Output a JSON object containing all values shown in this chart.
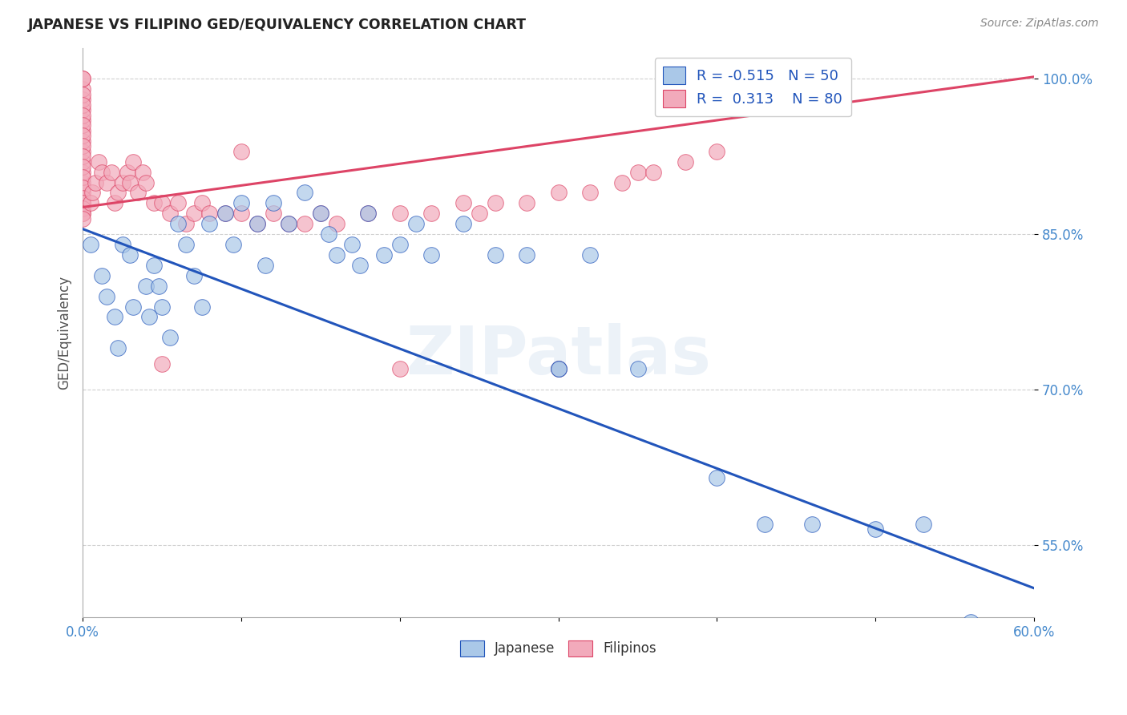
{
  "title": "JAPANESE VS FILIPINO GED/EQUIVALENCY CORRELATION CHART",
  "source": "Source: ZipAtlas.com",
  "ylabel": "GED/Equivalency",
  "watermark": "ZIPatlas",
  "x_min": 0.0,
  "x_max": 0.6,
  "y_min": 0.48,
  "y_max": 1.03,
  "y_ticks": [
    0.55,
    0.7,
    0.85,
    1.0
  ],
  "y_tick_labels": [
    "55.0%",
    "70.0%",
    "85.0%",
    "100.0%"
  ],
  "legend_R_japanese": "-0.515",
  "legend_N_japanese": "50",
  "legend_R_filipino": "0.313",
  "legend_N_filipino": "80",
  "japanese_color": "#aac8e8",
  "filipino_color": "#f2aabb",
  "japanese_line_color": "#2255bb",
  "filipino_line_color": "#dd4466",
  "japanese_scatter_x": [
    0.005,
    0.012,
    0.015,
    0.02,
    0.022,
    0.025,
    0.03,
    0.032,
    0.04,
    0.042,
    0.045,
    0.048,
    0.05,
    0.055,
    0.06,
    0.065,
    0.07,
    0.075,
    0.08,
    0.09,
    0.095,
    0.1,
    0.11,
    0.115,
    0.12,
    0.13,
    0.14,
    0.15,
    0.155,
    0.16,
    0.17,
    0.175,
    0.18,
    0.19,
    0.2,
    0.21,
    0.22,
    0.24,
    0.26,
    0.28,
    0.3,
    0.32,
    0.35,
    0.4,
    0.43,
    0.46,
    0.5,
    0.53,
    0.56,
    0.3
  ],
  "japanese_scatter_y": [
    0.84,
    0.81,
    0.79,
    0.77,
    0.74,
    0.84,
    0.83,
    0.78,
    0.8,
    0.77,
    0.82,
    0.8,
    0.78,
    0.75,
    0.86,
    0.84,
    0.81,
    0.78,
    0.86,
    0.87,
    0.84,
    0.88,
    0.86,
    0.82,
    0.88,
    0.86,
    0.89,
    0.87,
    0.85,
    0.83,
    0.84,
    0.82,
    0.87,
    0.83,
    0.84,
    0.86,
    0.83,
    0.86,
    0.83,
    0.83,
    0.72,
    0.83,
    0.72,
    0.615,
    0.57,
    0.57,
    0.565,
    0.57,
    0.475,
    0.72
  ],
  "filipino_scatter_x": [
    0.0,
    0.0,
    0.0,
    0.0,
    0.0,
    0.0,
    0.0,
    0.0,
    0.0,
    0.0,
    0.0,
    0.0,
    0.0,
    0.0,
    0.0,
    0.0,
    0.0,
    0.0,
    0.0,
    0.0,
    0.0,
    0.0,
    0.0,
    0.0,
    0.0,
    0.0,
    0.0,
    0.0,
    0.0,
    0.0,
    0.005,
    0.006,
    0.008,
    0.01,
    0.012,
    0.015,
    0.018,
    0.02,
    0.022,
    0.025,
    0.028,
    0.03,
    0.032,
    0.035,
    0.038,
    0.04,
    0.045,
    0.05,
    0.055,
    0.06,
    0.065,
    0.07,
    0.075,
    0.08,
    0.09,
    0.1,
    0.11,
    0.12,
    0.13,
    0.14,
    0.15,
    0.16,
    0.18,
    0.2,
    0.22,
    0.24,
    0.25,
    0.26,
    0.28,
    0.3,
    0.32,
    0.34,
    0.35,
    0.36,
    0.38,
    0.4,
    0.3,
    0.2,
    0.1,
    0.05
  ],
  "filipino_scatter_y": [
    0.87,
    0.88,
    0.89,
    0.9,
    0.91,
    0.92,
    0.93,
    0.94,
    0.95,
    0.96,
    0.97,
    0.98,
    0.99,
    1.0,
    1.0,
    0.985,
    0.975,
    0.965,
    0.955,
    0.945,
    0.935,
    0.925,
    0.915,
    0.905,
    0.895,
    0.885,
    0.88,
    0.875,
    0.87,
    0.865,
    0.88,
    0.89,
    0.9,
    0.92,
    0.91,
    0.9,
    0.91,
    0.88,
    0.89,
    0.9,
    0.91,
    0.9,
    0.92,
    0.89,
    0.91,
    0.9,
    0.88,
    0.88,
    0.87,
    0.88,
    0.86,
    0.87,
    0.88,
    0.87,
    0.87,
    0.87,
    0.86,
    0.87,
    0.86,
    0.86,
    0.87,
    0.86,
    0.87,
    0.87,
    0.87,
    0.88,
    0.87,
    0.88,
    0.88,
    0.89,
    0.89,
    0.9,
    0.91,
    0.91,
    0.92,
    0.93,
    0.72,
    0.72,
    0.93,
    0.725
  ],
  "japanese_line_x": [
    0.0,
    0.6
  ],
  "japanese_line_y": [
    0.855,
    0.508
  ],
  "filipino_line_x": [
    0.0,
    0.6
  ],
  "filipino_line_y": [
    0.876,
    1.002
  ],
  "grid_color": "#d0d0d0",
  "background_color": "#ffffff",
  "tick_color": "#4488cc"
}
